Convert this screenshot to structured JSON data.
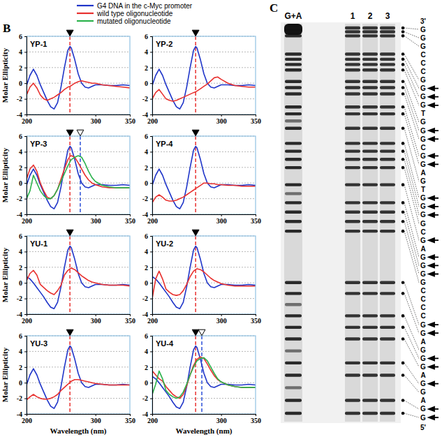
{
  "panel_labels": [
    "B",
    "C"
  ],
  "chart_data": [
    {
      "type": "line",
      "title": "YP-1",
      "y_label": "Molar Ellipticity",
      "xlim": [
        200,
        350
      ],
      "ylim": [
        -4,
        6
      ],
      "xticks": [
        200,
        300,
        350
      ],
      "yticks": [
        -4,
        -2,
        0,
        2,
        4,
        6
      ],
      "grid": true,
      "legend": "top",
      "x": [
        200,
        205,
        210,
        215,
        220,
        225,
        230,
        235,
        240,
        245,
        250,
        255,
        260,
        263,
        265,
        270,
        275,
        280,
        285,
        290,
        295,
        300,
        310,
        320,
        330,
        340,
        350
      ],
      "series": [
        {
          "name": "G4 DNA in the c-Myc promoter",
          "color": "#1f35c9",
          "values": [
            -0.3,
            1.0,
            1.8,
            1.0,
            -0.2,
            -1.2,
            -2.2,
            -3.0,
            -3.3,
            -2.5,
            -0.5,
            2.0,
            4.2,
            4.7,
            4.5,
            3.0,
            1.2,
            0.0,
            -0.5,
            -0.6,
            -0.4,
            -0.2,
            -0.2,
            -0.3,
            -0.3,
            -0.2,
            -0.3
          ]
        },
        {
          "name": "wild type oligonucleotide",
          "color": "#e8312f",
          "values": [
            -1.5,
            -0.5,
            0.0,
            -0.6,
            -1.5,
            -2.0,
            -2.2,
            -2.0,
            -1.8,
            -1.5,
            -1.2,
            -0.8,
            -0.5,
            -0.4,
            -0.3,
            0.0,
            0.2,
            0.3,
            0.2,
            0.1,
            0.0,
            0.0,
            -0.2,
            -0.3,
            -0.4,
            -0.5,
            -0.6
          ]
        }
      ],
      "vlines": [
        {
          "x": 263,
          "color": "#e8312f",
          "marker": "filled"
        }
      ]
    },
    {
      "type": "line",
      "title": "YP-2",
      "xlim": [
        200,
        350
      ],
      "ylim": [
        -4,
        6
      ],
      "xticks": [
        200,
        300,
        350
      ],
      "yticks": [
        -4,
        -2,
        0,
        2,
        4,
        6
      ],
      "grid": true,
      "x": [
        200,
        205,
        210,
        215,
        220,
        225,
        230,
        235,
        240,
        245,
        250,
        255,
        260,
        263,
        265,
        270,
        275,
        280,
        285,
        290,
        295,
        300,
        310,
        320,
        330,
        340,
        350
      ],
      "series": [
        {
          "color": "#1f35c9",
          "values": [
            -0.3,
            1.0,
            1.8,
            1.0,
            -0.2,
            -1.2,
            -2.2,
            -3.0,
            -3.3,
            -2.5,
            -0.5,
            2.0,
            4.2,
            4.7,
            4.5,
            3.0,
            1.2,
            0.0,
            -0.5,
            -0.6,
            -0.4,
            -0.2,
            -0.2,
            -0.3,
            -0.3,
            -0.2,
            -0.3
          ]
        },
        {
          "color": "#e8312f",
          "values": [
            -2.0,
            -1.2,
            -0.8,
            -1.4,
            -2.0,
            -2.2,
            -2.3,
            -2.2,
            -2.0,
            -1.8,
            -1.6,
            -1.4,
            -1.2,
            -1.1,
            -1.0,
            -0.7,
            -0.4,
            -0.1,
            0.3,
            0.7,
            0.8,
            0.5,
            0.0,
            -0.3,
            -0.4,
            -0.5,
            -0.5
          ]
        }
      ],
      "vlines": [
        {
          "x": 263,
          "color": "#e8312f",
          "marker": "filled"
        }
      ]
    },
    {
      "type": "line",
      "title": "YP-3",
      "y_label": "Molar Ellipticity",
      "xlim": [
        200,
        350
      ],
      "ylim": [
        -4,
        6
      ],
      "xticks": [
        200,
        300,
        350
      ],
      "yticks": [
        -4,
        -2,
        0,
        2,
        4,
        6
      ],
      "grid": true,
      "x": [
        200,
        205,
        210,
        215,
        220,
        225,
        230,
        235,
        240,
        245,
        250,
        255,
        260,
        263,
        265,
        270,
        275,
        280,
        285,
        290,
        295,
        300,
        310,
        320,
        330,
        340,
        350
      ],
      "series": [
        {
          "color": "#1f35c9",
          "values": [
            -0.3,
            1.0,
            1.8,
            1.0,
            -0.2,
            -1.2,
            -2.2,
            -3.0,
            -3.3,
            -2.5,
            -0.5,
            2.0,
            4.2,
            4.7,
            4.5,
            3.0,
            1.2,
            0.0,
            -0.5,
            -0.6,
            -0.4,
            -0.2,
            -0.2,
            -0.3,
            -0.3,
            -0.2,
            -0.3
          ]
        },
        {
          "color": "#e8312f",
          "values": [
            0.5,
            1.8,
            2.3,
            1.5,
            0.0,
            -1.0,
            -1.8,
            -2.0,
            -1.6,
            -0.8,
            0.5,
            1.8,
            3.0,
            3.4,
            3.5,
            3.3,
            2.6,
            1.8,
            1.0,
            0.4,
            0.0,
            -0.2,
            -0.5,
            -0.6,
            -0.6,
            -0.6,
            -0.6
          ]
        },
        {
          "name": "mutated oligonucleotide",
          "color": "#2bb24c",
          "values": [
            -2.0,
            -1.0,
            1.0,
            0.0,
            -1.0,
            -1.6,
            -2.0,
            -2.0,
            -1.6,
            -0.8,
            0.2,
            1.2,
            2.2,
            2.7,
            3.0,
            3.3,
            3.5,
            3.3,
            2.5,
            1.5,
            0.7,
            0.2,
            -0.3,
            -0.5,
            -0.6,
            -0.6,
            -0.6
          ]
        }
      ],
      "vlines": [
        {
          "x": 263,
          "color": "#e8312f",
          "marker": "filled"
        },
        {
          "x": 278,
          "color": "#2b4fd8",
          "marker": "open"
        }
      ]
    },
    {
      "type": "line",
      "title": "YP-4",
      "xlim": [
        200,
        350
      ],
      "ylim": [
        -4,
        6
      ],
      "xticks": [
        200,
        300,
        350
      ],
      "yticks": [
        -4,
        -2,
        0,
        2,
        4,
        6
      ],
      "grid": true,
      "x": [
        200,
        205,
        210,
        215,
        220,
        225,
        230,
        235,
        240,
        245,
        250,
        255,
        260,
        263,
        265,
        270,
        275,
        280,
        285,
        290,
        295,
        300,
        310,
        320,
        330,
        340,
        350
      ],
      "series": [
        {
          "color": "#1f35c9",
          "values": [
            -0.3,
            1.0,
            1.8,
            1.0,
            -0.2,
            -1.2,
            -2.2,
            -3.0,
            -3.3,
            -2.5,
            -0.5,
            2.0,
            4.2,
            4.7,
            4.5,
            3.0,
            1.2,
            0.0,
            -0.5,
            -0.6,
            -0.4,
            -0.2,
            -0.2,
            -0.3,
            -0.3,
            -0.2,
            -0.3
          ]
        },
        {
          "color": "#e8312f",
          "values": [
            -2.5,
            -1.8,
            -1.5,
            -1.8,
            -2.2,
            -2.3,
            -2.3,
            -2.2,
            -2.0,
            -1.8,
            -1.5,
            -1.2,
            -0.9,
            -0.7,
            -0.6,
            -0.3,
            0.0,
            0.0,
            -0.1,
            -0.1,
            -0.2,
            -0.2,
            -0.3,
            -0.3,
            -0.4,
            -0.4,
            -0.4
          ]
        }
      ],
      "vlines": [
        {
          "x": 263,
          "color": "#e8312f",
          "marker": "filled"
        }
      ]
    },
    {
      "type": "line",
      "title": "YU-1",
      "y_label": "Molar Ellipticity",
      "xlim": [
        200,
        350
      ],
      "ylim": [
        -4,
        6
      ],
      "xticks": [
        200,
        300,
        350
      ],
      "yticks": [
        -4,
        -2,
        0,
        2,
        4,
        6
      ],
      "grid": true,
      "x": [
        200,
        205,
        210,
        215,
        220,
        225,
        230,
        235,
        240,
        245,
        250,
        255,
        260,
        263,
        265,
        270,
        275,
        280,
        285,
        290,
        295,
        300,
        310,
        320,
        330,
        340,
        350
      ],
      "series": [
        {
          "color": "#1f35c9",
          "values": [
            0.8,
            0.5,
            0.0,
            -0.6,
            -1.2,
            -1.8,
            -2.5,
            -3.1,
            -3.3,
            -2.5,
            -0.5,
            2.0,
            4.2,
            4.7,
            4.5,
            3.0,
            1.2,
            0.0,
            -0.5,
            -0.6,
            -0.4,
            -0.2,
            -0.2,
            -0.3,
            -0.3,
            -0.2,
            -0.3
          ]
        },
        {
          "color": "#e8312f",
          "values": [
            0.3,
            1.2,
            1.6,
            1.0,
            -0.2,
            -0.6,
            -1.0,
            -1.3,
            -1.5,
            -1.0,
            -0.3,
            1.0,
            1.6,
            1.8,
            1.9,
            1.7,
            1.3,
            0.9,
            0.6,
            0.3,
            0.1,
            0.0,
            -0.2,
            -0.3,
            -0.3,
            -0.3,
            -0.4
          ]
        }
      ],
      "vlines": [
        {
          "x": 263,
          "color": "#e8312f",
          "marker": "filled"
        }
      ]
    },
    {
      "type": "line",
      "title": "YU-2",
      "xlim": [
        200,
        350
      ],
      "ylim": [
        -4,
        6
      ],
      "xticks": [
        200,
        300,
        350
      ],
      "yticks": [
        -4,
        -2,
        0,
        2,
        4,
        6
      ],
      "grid": true,
      "x": [
        200,
        205,
        210,
        215,
        220,
        225,
        230,
        235,
        240,
        245,
        250,
        255,
        260,
        263,
        265,
        270,
        275,
        280,
        285,
        290,
        295,
        300,
        310,
        320,
        330,
        340,
        350
      ],
      "series": [
        {
          "color": "#1f35c9",
          "values": [
            0.8,
            0.5,
            0.0,
            -0.6,
            -1.2,
            -1.8,
            -2.5,
            -3.1,
            -3.3,
            -2.5,
            -0.5,
            2.0,
            4.2,
            4.7,
            4.5,
            3.0,
            1.2,
            0.0,
            -0.5,
            -0.6,
            -0.4,
            -0.2,
            -0.2,
            -0.3,
            -0.3,
            -0.2,
            -0.3
          ]
        },
        {
          "color": "#e8312f",
          "values": [
            -2.0,
            0.5,
            1.5,
            0.5,
            -0.8,
            -1.2,
            -1.5,
            -1.6,
            -1.5,
            -1.0,
            -0.2,
            0.8,
            1.5,
            1.7,
            1.8,
            1.7,
            1.4,
            1.0,
            0.6,
            0.3,
            0.1,
            -0.1,
            -0.3,
            -0.4,
            -0.4,
            -0.4,
            -0.4
          ]
        }
      ],
      "vlines": [
        {
          "x": 263,
          "color": "#e8312f",
          "marker": "filled"
        }
      ]
    },
    {
      "type": "line",
      "title": "YU-3",
      "y_label": "Molar Ellipticity",
      "x_label": "Wavelength (nm)",
      "xlim": [
        200,
        350
      ],
      "ylim": [
        -4,
        6
      ],
      "xticks": [
        200,
        300,
        350
      ],
      "yticks": [
        -4,
        -2,
        0,
        2,
        4,
        6
      ],
      "grid": true,
      "x": [
        200,
        205,
        210,
        215,
        220,
        225,
        230,
        235,
        240,
        245,
        250,
        255,
        260,
        263,
        265,
        270,
        275,
        280,
        285,
        290,
        295,
        300,
        310,
        320,
        330,
        340,
        350
      ],
      "series": [
        {
          "color": "#1f35c9",
          "values": [
            -0.3,
            1.0,
            1.8,
            1.0,
            -0.2,
            -1.2,
            -2.2,
            -3.0,
            -3.3,
            -2.5,
            -0.5,
            2.0,
            4.2,
            4.7,
            4.5,
            3.0,
            1.2,
            0.0,
            -0.5,
            -0.6,
            -0.4,
            -0.2,
            -0.2,
            -0.3,
            -0.3,
            -0.2,
            -0.3
          ]
        },
        {
          "color": "#e8312f",
          "values": [
            -2.2,
            -1.8,
            -1.5,
            -1.8,
            -2.0,
            -2.1,
            -2.1,
            -2.0,
            -1.8,
            -1.5,
            -1.0,
            -0.6,
            -0.2,
            0.0,
            0.2,
            0.4,
            0.4,
            0.3,
            0.2,
            0.1,
            0.0,
            -0.1,
            -0.2,
            -0.3,
            -0.3,
            -0.3,
            -0.3
          ]
        }
      ],
      "vlines": [
        {
          "x": 263,
          "color": "#e8312f",
          "marker": "filled"
        }
      ]
    },
    {
      "type": "line",
      "title": "YU-4",
      "x_label": "Wavelength (nm)",
      "xlim": [
        200,
        350
      ],
      "ylim": [
        -4,
        6
      ],
      "xticks": [
        200,
        300,
        350
      ],
      "yticks": [
        -4,
        -2,
        0,
        2,
        4,
        6
      ],
      "grid": true,
      "x": [
        200,
        205,
        210,
        215,
        220,
        225,
        230,
        235,
        240,
        245,
        250,
        255,
        260,
        263,
        265,
        270,
        275,
        280,
        285,
        290,
        295,
        300,
        310,
        320,
        330,
        340,
        350
      ],
      "series": [
        {
          "color": "#1f35c9",
          "values": [
            0.8,
            0.5,
            0.0,
            -0.6,
            -1.2,
            -1.8,
            -2.5,
            -3.1,
            -3.3,
            -2.5,
            -0.5,
            2.0,
            4.2,
            4.7,
            4.5,
            3.0,
            1.2,
            0.0,
            -0.5,
            -0.6,
            -0.4,
            -0.2,
            -0.2,
            -0.3,
            -0.3,
            -0.2,
            -0.3
          ]
        },
        {
          "color": "#e8312f",
          "values": [
            1.5,
            1.0,
            0.5,
            0.2,
            -0.5,
            -1.0,
            -1.5,
            -1.8,
            -2.0,
            -1.5,
            -0.4,
            1.0,
            2.2,
            2.7,
            3.0,
            3.3,
            3.1,
            2.4,
            1.6,
            0.9,
            0.4,
            0.1,
            -0.3,
            -0.5,
            -0.6,
            -0.6,
            -0.6
          ]
        },
        {
          "color": "#2bb24c",
          "values": [
            -1.5,
            -0.2,
            1.5,
            0.5,
            -1.0,
            -1.5,
            -1.8,
            -2.0,
            -1.8,
            -1.2,
            -0.2,
            1.0,
            2.0,
            2.5,
            2.8,
            3.1,
            3.2,
            2.8,
            2.0,
            1.2,
            0.5,
            0.1,
            -0.3,
            -0.5,
            -0.6,
            -0.6,
            -0.6
          ]
        }
      ],
      "vlines": [
        {
          "x": 263,
          "color": "#e8312f",
          "marker": "filled"
        },
        {
          "x": 272,
          "color": "#2b4fd8",
          "marker": "open"
        }
      ]
    }
  ],
  "gel": {
    "lanes": [
      "G+A",
      "1",
      "2",
      "3"
    ],
    "end_labels": [
      "3'",
      "5'"
    ],
    "sequence": [
      "G",
      "G",
      "G",
      "C",
      "C",
      "C",
      "G",
      "G",
      "G",
      "G",
      "T",
      "G",
      "G",
      "G",
      "C",
      "G",
      "G",
      "A",
      "G",
      "T",
      "G",
      "G",
      "G",
      "G",
      "C",
      "G",
      "A",
      "G",
      "G",
      "G",
      "G",
      "C",
      "C",
      "C",
      "C",
      "G",
      "G",
      "A",
      "G",
      "G",
      "G",
      "A",
      "G",
      "G",
      "A",
      "G",
      "G"
    ],
    "arrows": [
      7,
      8,
      9,
      12,
      13,
      15,
      16,
      20,
      21,
      22,
      25,
      27,
      28,
      29,
      35,
      36,
      39,
      40,
      42,
      45,
      46
    ]
  }
}
